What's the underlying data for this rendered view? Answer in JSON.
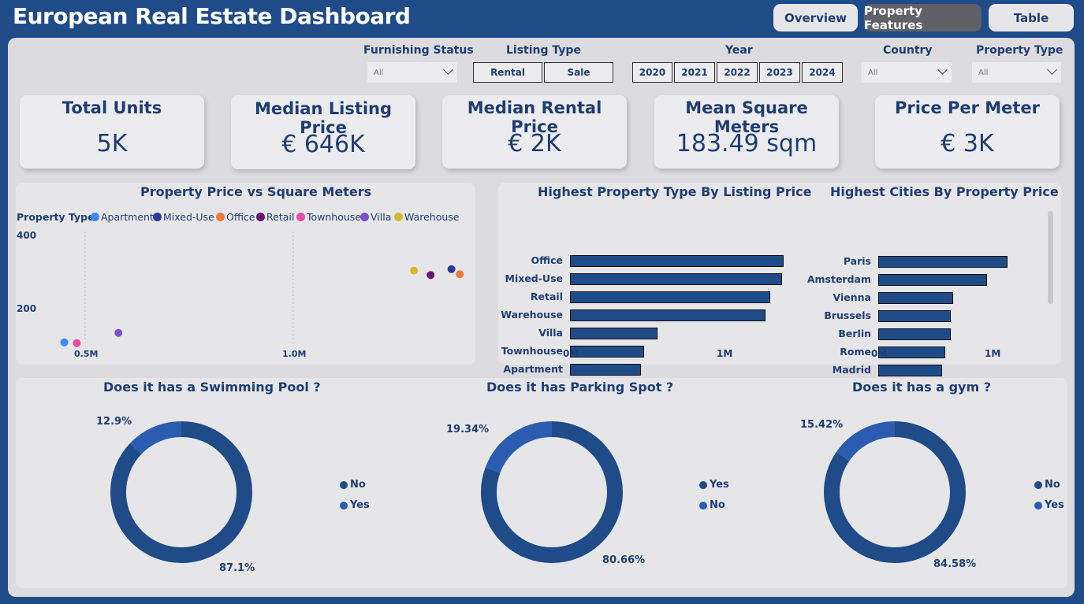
{
  "title": "European Real Estate Dashboard",
  "nav": [
    {
      "label": "Overview",
      "active": false
    },
    {
      "label": "Property Features",
      "active": true
    },
    {
      "label": "Table",
      "active": false
    }
  ],
  "filters": {
    "furnishing": {
      "label": "Furnishing Status",
      "value": "All"
    },
    "listing_type": {
      "label": "Listing Type",
      "options": [
        "Rental",
        "Sale"
      ]
    },
    "year": {
      "label": "Year",
      "options": [
        "2020",
        "2021",
        "2022",
        "2023",
        "2024"
      ]
    },
    "country": {
      "label": "Country",
      "value": "All"
    },
    "property_type": {
      "label": "Property Type",
      "value": "All"
    }
  },
  "kpis": [
    {
      "label": "Total Units",
      "value": "5K"
    },
    {
      "label": "Median Listing Price",
      "value": "€ 646K"
    },
    {
      "label": "Median Rental Price",
      "value": "€ 2K"
    },
    {
      "label": "Mean Square Meters",
      "value": "183.49 sqm"
    },
    {
      "label": "Price Per Meter",
      "value": "€ 3K"
    }
  ],
  "colors": {
    "primary": "#1f4b88",
    "donut_dark": "#1f4b88",
    "donut_light": "#2a5db0",
    "Apartment": "#3d8af2",
    "Mixed-Use": "#2b3a9a",
    "Office": "#f0783c",
    "Retail": "#6a1478",
    "Townhouse": "#e64ca6",
    "Villa": "#7a52c8",
    "Warehouse": "#d9b826"
  },
  "chart_data": [
    {
      "type": "scatter",
      "title": "Property Price vs Square Meters",
      "legend_title": "Property Type",
      "legend_placement": "top-left",
      "series": [
        {
          "name": "Apartment",
          "x": 0.45,
          "y": 108
        },
        {
          "name": "Mixed-Use",
          "x": 1.38,
          "y": 308
        },
        {
          "name": "Office",
          "x": 1.4,
          "y": 294
        },
        {
          "name": "Retail",
          "x": 1.33,
          "y": 292
        },
        {
          "name": "Townhouse",
          "x": 0.48,
          "y": 106
        },
        {
          "name": "Villa",
          "x": 0.58,
          "y": 134
        },
        {
          "name": "Warehouse",
          "x": 1.29,
          "y": 304
        }
      ],
      "x_ticks": [
        "0.5M",
        "1.0M"
      ],
      "y_ticks": [
        "400",
        "200"
      ],
      "xlim": [
        0.4,
        1.42
      ],
      "ylim": [
        85,
        400
      ],
      "grid": "vertical dotted"
    },
    {
      "type": "bar",
      "orientation": "horizontal",
      "title": "Highest Property Type By Listing Price",
      "categories": [
        "Office",
        "Mixed-Use",
        "Retail",
        "Warehouse",
        "Villa",
        "Townhouse",
        "Apartment"
      ],
      "values": [
        1.39,
        1.38,
        1.3,
        1.27,
        0.57,
        0.48,
        0.46
      ],
      "x_ticks": [
        "0M",
        "1M"
      ],
      "xlim": [
        0,
        1.7
      ]
    },
    {
      "type": "bar",
      "orientation": "horizontal",
      "title": "Highest Cities By Property Price",
      "categories": [
        "Paris",
        "Amsterdam",
        "Vienna",
        "Brussels",
        "Berlin",
        "Rome",
        "Madrid"
      ],
      "values": [
        1.14,
        0.96,
        0.66,
        0.64,
        0.64,
        0.59,
        0.56
      ],
      "x_ticks": [
        "0M",
        "1M"
      ],
      "xlim": [
        0,
        1.6
      ]
    },
    {
      "type": "pie",
      "title": "Does it has a Swimming Pool ?",
      "labels": [
        "No",
        "Yes"
      ],
      "values": [
        87.1,
        12.9
      ],
      "value_labels": [
        "87.1%",
        "12.9%"
      ],
      "legend_placement": "right"
    },
    {
      "type": "pie",
      "title": "Does it has Parking Spot ?",
      "labels": [
        "Yes",
        "No"
      ],
      "values": [
        80.66,
        19.34
      ],
      "value_labels": [
        "80.66%",
        "19.34%"
      ],
      "legend_placement": "right"
    },
    {
      "type": "pie",
      "title": "Does it has a gym ?",
      "labels": [
        "No",
        "Yes"
      ],
      "values": [
        84.58,
        15.42
      ],
      "value_labels": [
        "84.58%",
        "15.42%"
      ],
      "legend_placement": "right"
    }
  ]
}
